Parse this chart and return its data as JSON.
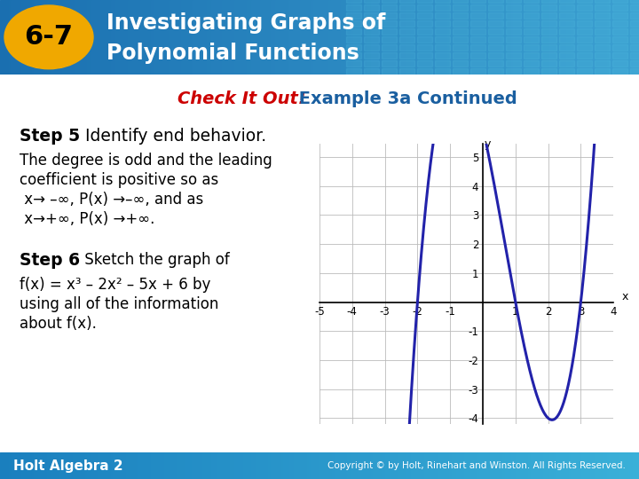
{
  "title_number": "6-7",
  "title_line1": "Investigating Graphs of",
  "title_line2": "Polynomial Functions",
  "subtitle_check": "Check It Out!",
  "subtitle_rest": " Example 3a Continued",
  "step5_title": "Step 5",
  "step5_text": " Identify end behavior.",
  "step5_body1": "The degree is odd and the leading",
  "step5_body2": "coefficient is positive so as",
  "step5_body3": " x→ –∞, P(x) →–∞, and as",
  "step5_body4": " x→+∞, P(x) →+∞.",
  "step6_title": "Step 6",
  "step6_body1": " Sketch the graph of",
  "step6_body2": "f(x) = x³ – 2x² – 5x + 6 by",
  "step6_body3": "using all of the information",
  "step6_body4": "about f(x).",
  "footer": "Holt Algebra 2",
  "copyright": "Copyright © by Holt, Rinehart and Winston. All Rights Reserved.",
  "graph_xlim": [
    -5,
    4
  ],
  "graph_ylim": [
    -4,
    5
  ],
  "graph_xticks": [
    -5,
    -4,
    -3,
    -2,
    -1,
    1,
    2,
    3,
    4
  ],
  "graph_yticks": [
    -4,
    -3,
    -2,
    -1,
    1,
    2,
    3,
    4,
    5
  ],
  "curve_color": "#2222aa",
  "header_bg_left": "#1a6fb0",
  "header_bg_right": "#3a9fd0",
  "number_oval_color": "#f0a800",
  "number_text_color": "#000000",
  "title_text_color": "#ffffff",
  "subtitle_check_color": "#cc0000",
  "subtitle_rest_color": "#1a5fa0",
  "body_text_color": "#000000",
  "footer_bg_color": "#2a8fbf",
  "footer_text_color": "#ffffff",
  "bg_color": "#ffffff",
  "grid_color": "#bbbbbb"
}
